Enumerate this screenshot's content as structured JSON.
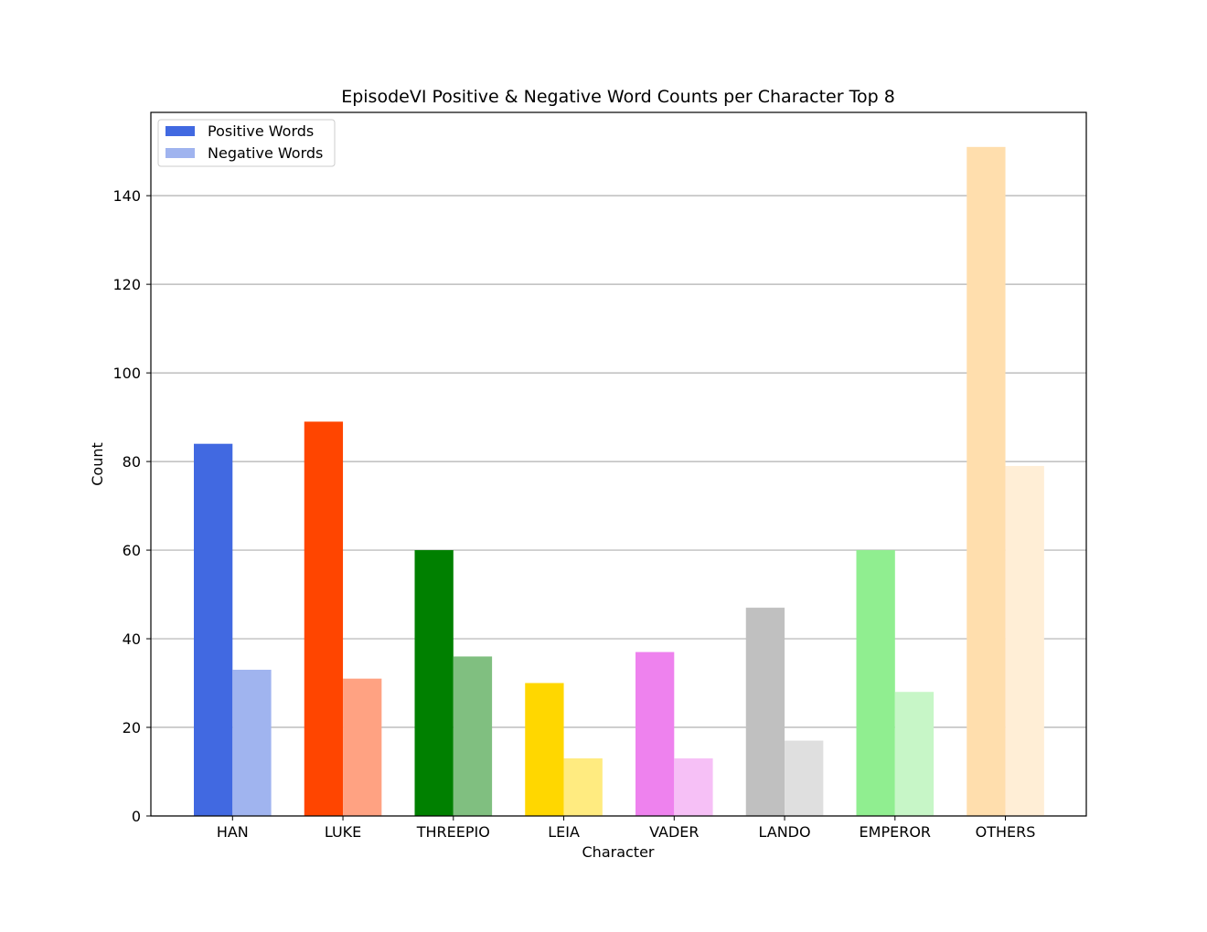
{
  "chart_data": {
    "type": "bar",
    "title": "EpisodeVI Positive & Negative Word Counts per Character Top 8",
    "xlabel": "Character",
    "ylabel": "Count",
    "categories": [
      "HAN",
      "LUKE",
      "THREEPIO",
      "LEIA",
      "VADER",
      "LANDO",
      "EMPEROR",
      "OTHERS"
    ],
    "series": [
      {
        "name": "Positive Words",
        "values": [
          84,
          89,
          60,
          30,
          37,
          47,
          60,
          151
        ],
        "colors": [
          "#4169e1",
          "#ff4500",
          "#008000",
          "#ffd700",
          "#ee82ee",
          "#c0c0c0",
          "#90ee90",
          "#ffdead"
        ],
        "legend_color": "#4169e1"
      },
      {
        "name": "Negative Words",
        "values": [
          33,
          31,
          36,
          13,
          13,
          17,
          28,
          79
        ],
        "colors": [
          "#a0b4ef",
          "#ffa282",
          "#80bf80",
          "#ffeb80",
          "#f6c0f6",
          "#dfdfdf",
          "#c7f6c7",
          "#ffeed6"
        ],
        "legend_color": "#a0b4ef"
      }
    ],
    "ylim": [
      0,
      158.8
    ],
    "yticks": [
      0,
      20,
      40,
      60,
      80,
      100,
      120,
      140
    ],
    "grid": "y",
    "legend_position": "top-left"
  }
}
